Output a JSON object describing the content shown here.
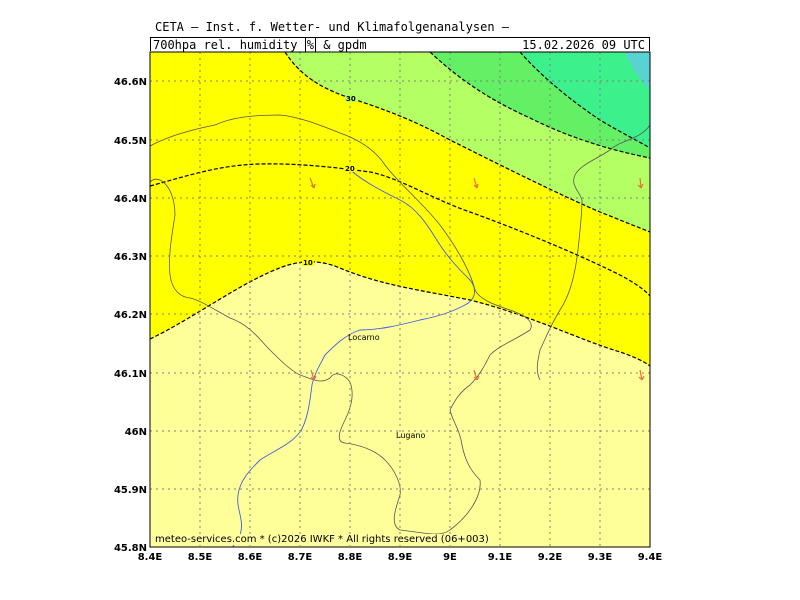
{
  "header": {
    "line1": "CETA — Inst. f. Wetter- und Klimafolgenanalysen —",
    "field": "700hpa rel. humidity",
    "unit": "%",
    "field2": "& gpdm",
    "datetime": "15.02.2026 09 UTC"
  },
  "map": {
    "x_ticks": [
      "8.4E",
      "8.5E",
      "8.6E",
      "8.7E",
      "8.8E",
      "8.9E",
      "9E",
      "9.1E",
      "9.2E",
      "9.3E",
      "9.4E"
    ],
    "y_ticks": [
      "46.6N",
      "46.5N",
      "46.4N",
      "46.3N",
      "46.2N",
      "46.1N",
      "46N",
      "45.9N",
      "45.8N"
    ],
    "towns": [
      {
        "name": "Locarno"
      },
      {
        "name": "Lugano"
      }
    ],
    "contour_labels": [
      "30",
      "20",
      "10"
    ],
    "fill_colors": {
      "lt10": "#ffff99",
      "10_20": "#ffff00",
      "20_30": "#b4ff64",
      "30_40": "#64f064",
      "40_50": "#3cf08c",
      "gt50": "#5ad2d2"
    }
  },
  "credit": "meteo-services.com * (c)2026 IWKF * All rights reserved (06+003)"
}
